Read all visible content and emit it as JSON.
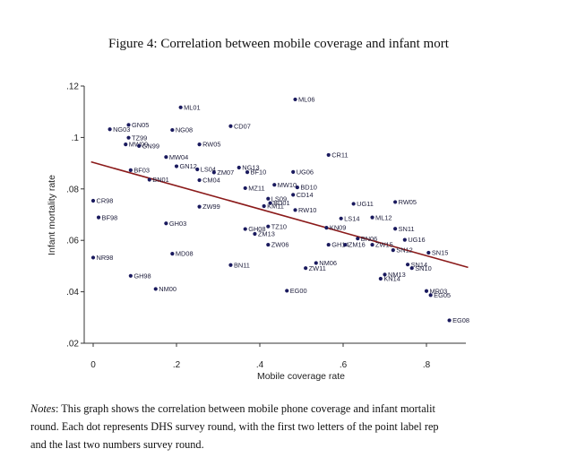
{
  "figure": {
    "caption": "Figure 4: Correlation between mobile coverage and infant mort"
  },
  "notes": {
    "label": "Notes",
    "lines": [
      ": This graph shows the correlation between mobile phone coverage and infant mortalit",
      "round. Each dot represents DHS survey round, with the first two letters of the point label rep",
      "and the last two numbers survey round."
    ]
  },
  "colors": {
    "points": "#1a1a5e",
    "fit_line": "#8b1a1a",
    "axis": "#333333"
  },
  "chart_data": {
    "type": "scatter",
    "title": "Figure 4: Correlation between mobile coverage and infant mort",
    "xlabel": "Mobile coverage rate",
    "ylabel": "Infant mortality rate",
    "xlim": [
      -0.02,
      0.9
    ],
    "ylim": [
      0.02,
      0.12
    ],
    "x_ticks": [
      0,
      0.2,
      0.4,
      0.6,
      0.8
    ],
    "x_tick_labels": [
      "0",
      ".2",
      ".4",
      ".6",
      ".8"
    ],
    "y_ticks": [
      0.02,
      0.04,
      0.06,
      0.08,
      0.1,
      0.12
    ],
    "y_tick_labels": [
      ".02",
      ".04",
      ".06",
      ".08",
      ".1",
      ".12"
    ],
    "grid": false,
    "legend": "none",
    "fit_line": {
      "x": [
        -0.005,
        0.9
      ],
      "y": [
        0.0905,
        0.0495
      ]
    },
    "points": [
      {
        "label": "ML06",
        "x": 0.485,
        "y": 0.1148
      },
      {
        "label": "ML01",
        "x": 0.21,
        "y": 0.1117
      },
      {
        "label": "GN05",
        "x": 0.085,
        "y": 0.1049
      },
      {
        "label": "NG03",
        "x": 0.04,
        "y": 0.1032
      },
      {
        "label": "NG08",
        "x": 0.19,
        "y": 0.1029
      },
      {
        "label": "CD07",
        "x": 0.33,
        "y": 0.1044
      },
      {
        "label": "TZ99",
        "x": 0.085,
        "y": 0.0999
      },
      {
        "label": "MW00",
        "x": 0.078,
        "y": 0.0973
      },
      {
        "label": "GN99",
        "x": 0.11,
        "y": 0.0967
      },
      {
        "label": "RW05",
        "x": 0.255,
        "y": 0.0973
      },
      {
        "label": "CR11",
        "x": 0.565,
        "y": 0.0932
      },
      {
        "label": "MW04",
        "x": 0.175,
        "y": 0.0924
      },
      {
        "label": "GN12",
        "x": 0.2,
        "y": 0.0888
      },
      {
        "label": "LS04",
        "x": 0.25,
        "y": 0.0876
      },
      {
        "label": "ZM07",
        "x": 0.29,
        "y": 0.0864
      },
      {
        "label": "NG13",
        "x": 0.35,
        "y": 0.0883
      },
      {
        "label": "BF10",
        "x": 0.37,
        "y": 0.0865
      },
      {
        "label": "UG06",
        "x": 0.48,
        "y": 0.0866
      },
      {
        "label": "BF03",
        "x": 0.09,
        "y": 0.0873
      },
      {
        "label": "BN01",
        "x": 0.135,
        "y": 0.0836
      },
      {
        "label": "CM04",
        "x": 0.255,
        "y": 0.0834
      },
      {
        "label": "MZ11",
        "x": 0.365,
        "y": 0.0803
      },
      {
        "label": "MW10",
        "x": 0.435,
        "y": 0.0816
      },
      {
        "label": "BD10",
        "x": 0.49,
        "y": 0.0806
      },
      {
        "label": "CD14",
        "x": 0.48,
        "y": 0.0777
      },
      {
        "label": "LS09",
        "x": 0.42,
        "y": 0.0762
      },
      {
        "label": "BD01",
        "x": 0.425,
        "y": 0.0745
      },
      {
        "label": "KM11",
        "x": 0.41,
        "y": 0.0733
      },
      {
        "label": "RW10",
        "x": 0.485,
        "y": 0.0718
      },
      {
        "label": "CR98",
        "x": 0.0,
        "y": 0.0754
      },
      {
        "label": "BF98",
        "x": 0.013,
        "y": 0.0689
      },
      {
        "label": "ZW99",
        "x": 0.255,
        "y": 0.0731
      },
      {
        "label": "UG11",
        "x": 0.625,
        "y": 0.0742
      },
      {
        "label": "RW05",
        "x": 0.725,
        "y": 0.0749
      },
      {
        "label": "LS14",
        "x": 0.595,
        "y": 0.0685
      },
      {
        "label": "ML12",
        "x": 0.67,
        "y": 0.0689
      },
      {
        "label": "GH03",
        "x": 0.175,
        "y": 0.0666
      },
      {
        "label": "GH08",
        "x": 0.365,
        "y": 0.0644
      },
      {
        "label": "TZ10",
        "x": 0.42,
        "y": 0.0654
      },
      {
        "label": "ZM13",
        "x": 0.388,
        "y": 0.0625
      },
      {
        "label": "KN09",
        "x": 0.56,
        "y": 0.0649
      },
      {
        "label": "SN11",
        "x": 0.725,
        "y": 0.0645
      },
      {
        "label": "BN06",
        "x": 0.635,
        "y": 0.0607
      },
      {
        "label": "UG16",
        "x": 0.748,
        "y": 0.0602
      },
      {
        "label": "GH14",
        "x": 0.565,
        "y": 0.0583
      },
      {
        "label": "ZM16",
        "x": 0.605,
        "y": 0.0583
      },
      {
        "label": "ZW15",
        "x": 0.67,
        "y": 0.0583
      },
      {
        "label": "ZW06",
        "x": 0.42,
        "y": 0.0583
      },
      {
        "label": "SN12",
        "x": 0.72,
        "y": 0.0562
      },
      {
        "label": "SN15",
        "x": 0.805,
        "y": 0.0552
      },
      {
        "label": "NR98",
        "x": 0.0,
        "y": 0.0533
      },
      {
        "label": "MD08",
        "x": 0.19,
        "y": 0.0548
      },
      {
        "label": "BN11",
        "x": 0.33,
        "y": 0.0504
      },
      {
        "label": "NM06",
        "x": 0.535,
        "y": 0.0512
      },
      {
        "label": "ZW11",
        "x": 0.51,
        "y": 0.0492
      },
      {
        "label": "SN14",
        "x": 0.755,
        "y": 0.0506
      },
      {
        "label": "SN10",
        "x": 0.765,
        "y": 0.0492
      },
      {
        "label": "GH98",
        "x": 0.09,
        "y": 0.0462
      },
      {
        "label": "NM13",
        "x": 0.7,
        "y": 0.0467
      },
      {
        "label": "KN14",
        "x": 0.69,
        "y": 0.0451
      },
      {
        "label": "NM00",
        "x": 0.15,
        "y": 0.0411
      },
      {
        "label": "EG00",
        "x": 0.465,
        "y": 0.0404
      },
      {
        "label": "MR03",
        "x": 0.8,
        "y": 0.0403
      },
      {
        "label": "EG05",
        "x": 0.81,
        "y": 0.0387
      },
      {
        "label": "EG08",
        "x": 0.855,
        "y": 0.0289
      }
    ]
  }
}
